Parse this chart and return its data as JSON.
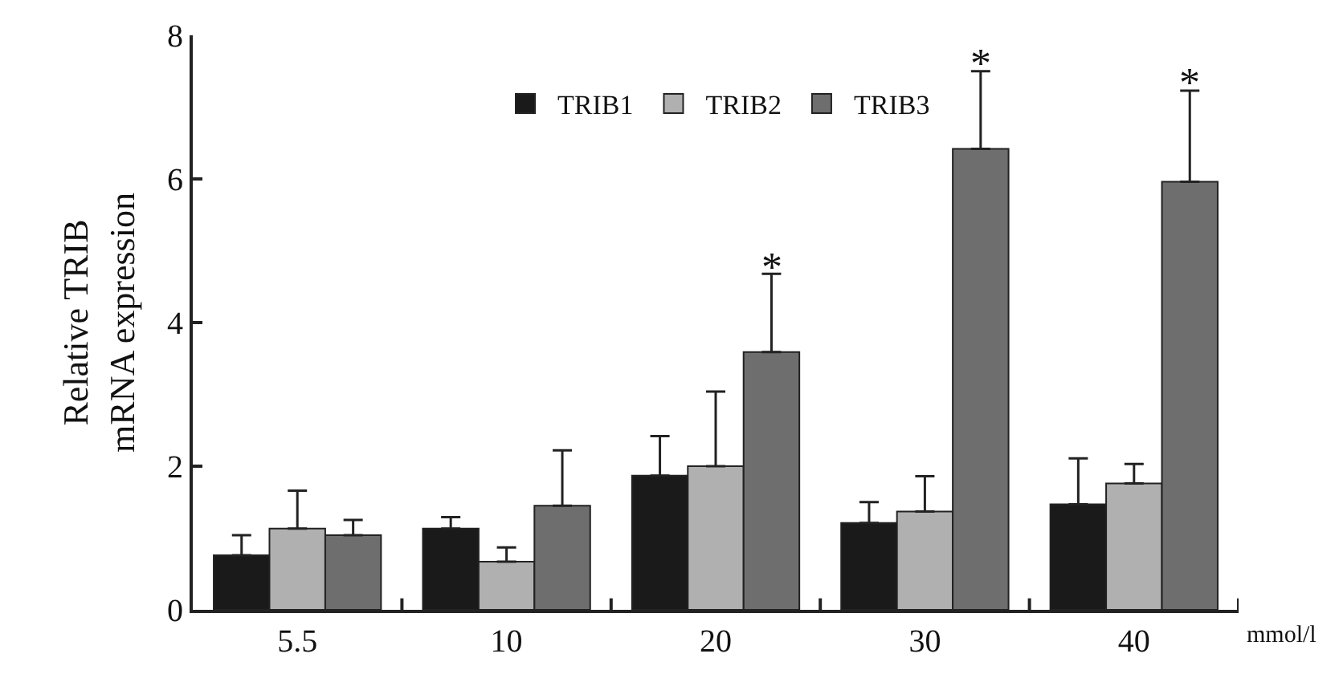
{
  "chart_data": {
    "type": "bar",
    "ylabel": "Relative TRIB\nmRNA expression",
    "xlabel": "mmol/l",
    "categories": [
      "5.5",
      "10",
      "20",
      "30",
      "40"
    ],
    "series": [
      {
        "name": "TRIB1",
        "color": "#1a1a1a",
        "values": [
          0.76,
          1.13,
          1.87,
          1.21,
          1.47
        ],
        "errors": [
          [
            0.76,
            1.04
          ],
          [
            1.13,
            1.29
          ],
          [
            1.87,
            2.42
          ],
          [
            1.21,
            1.5
          ],
          [
            1.47,
            2.11
          ]
        ]
      },
      {
        "name": "TRIB2",
        "color": "#b0b0b0",
        "values": [
          1.13,
          0.67,
          2.0,
          1.37,
          1.76
        ],
        "errors": [
          [
            1.13,
            1.66
          ],
          [
            0.67,
            0.87
          ],
          [
            2.0,
            3.04
          ],
          [
            1.37,
            1.86
          ],
          [
            1.76,
            2.03
          ]
        ]
      },
      {
        "name": "TRIB3",
        "color": "#6e6e6e",
        "values": [
          1.04,
          1.45,
          3.59,
          6.42,
          5.96
        ],
        "errors": [
          [
            1.04,
            1.25
          ],
          [
            1.45,
            2.22
          ],
          [
            3.59,
            4.68
          ],
          [
            6.42,
            7.5
          ],
          [
            5.96,
            7.23
          ]
        ]
      }
    ],
    "annotations": [
      "*",
      "*",
      "*"
    ],
    "ylim": [
      0,
      8
    ],
    "yticks": [
      0,
      2,
      4,
      6,
      8
    ],
    "grid": false,
    "legend": "top"
  }
}
